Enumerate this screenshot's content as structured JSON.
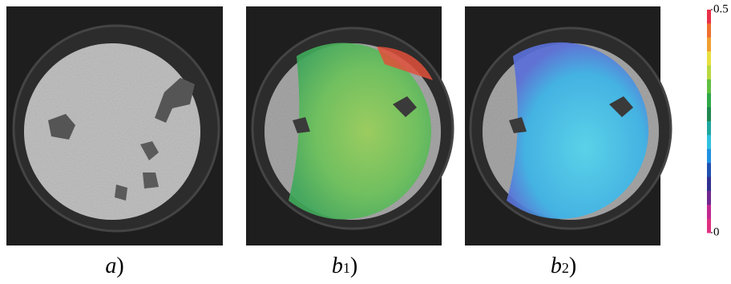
{
  "panels": [
    {
      "letter": "a",
      "suffix": ")"
    },
    {
      "letter": "b",
      "subscript": "1",
      "suffix": ")"
    },
    {
      "letter": "b",
      "subscript": "2",
      "suffix": ")"
    }
  ],
  "colorbar": {
    "lim": [
      0,
      0.5
    ],
    "ticks": [
      0,
      0.5
    ]
  }
}
